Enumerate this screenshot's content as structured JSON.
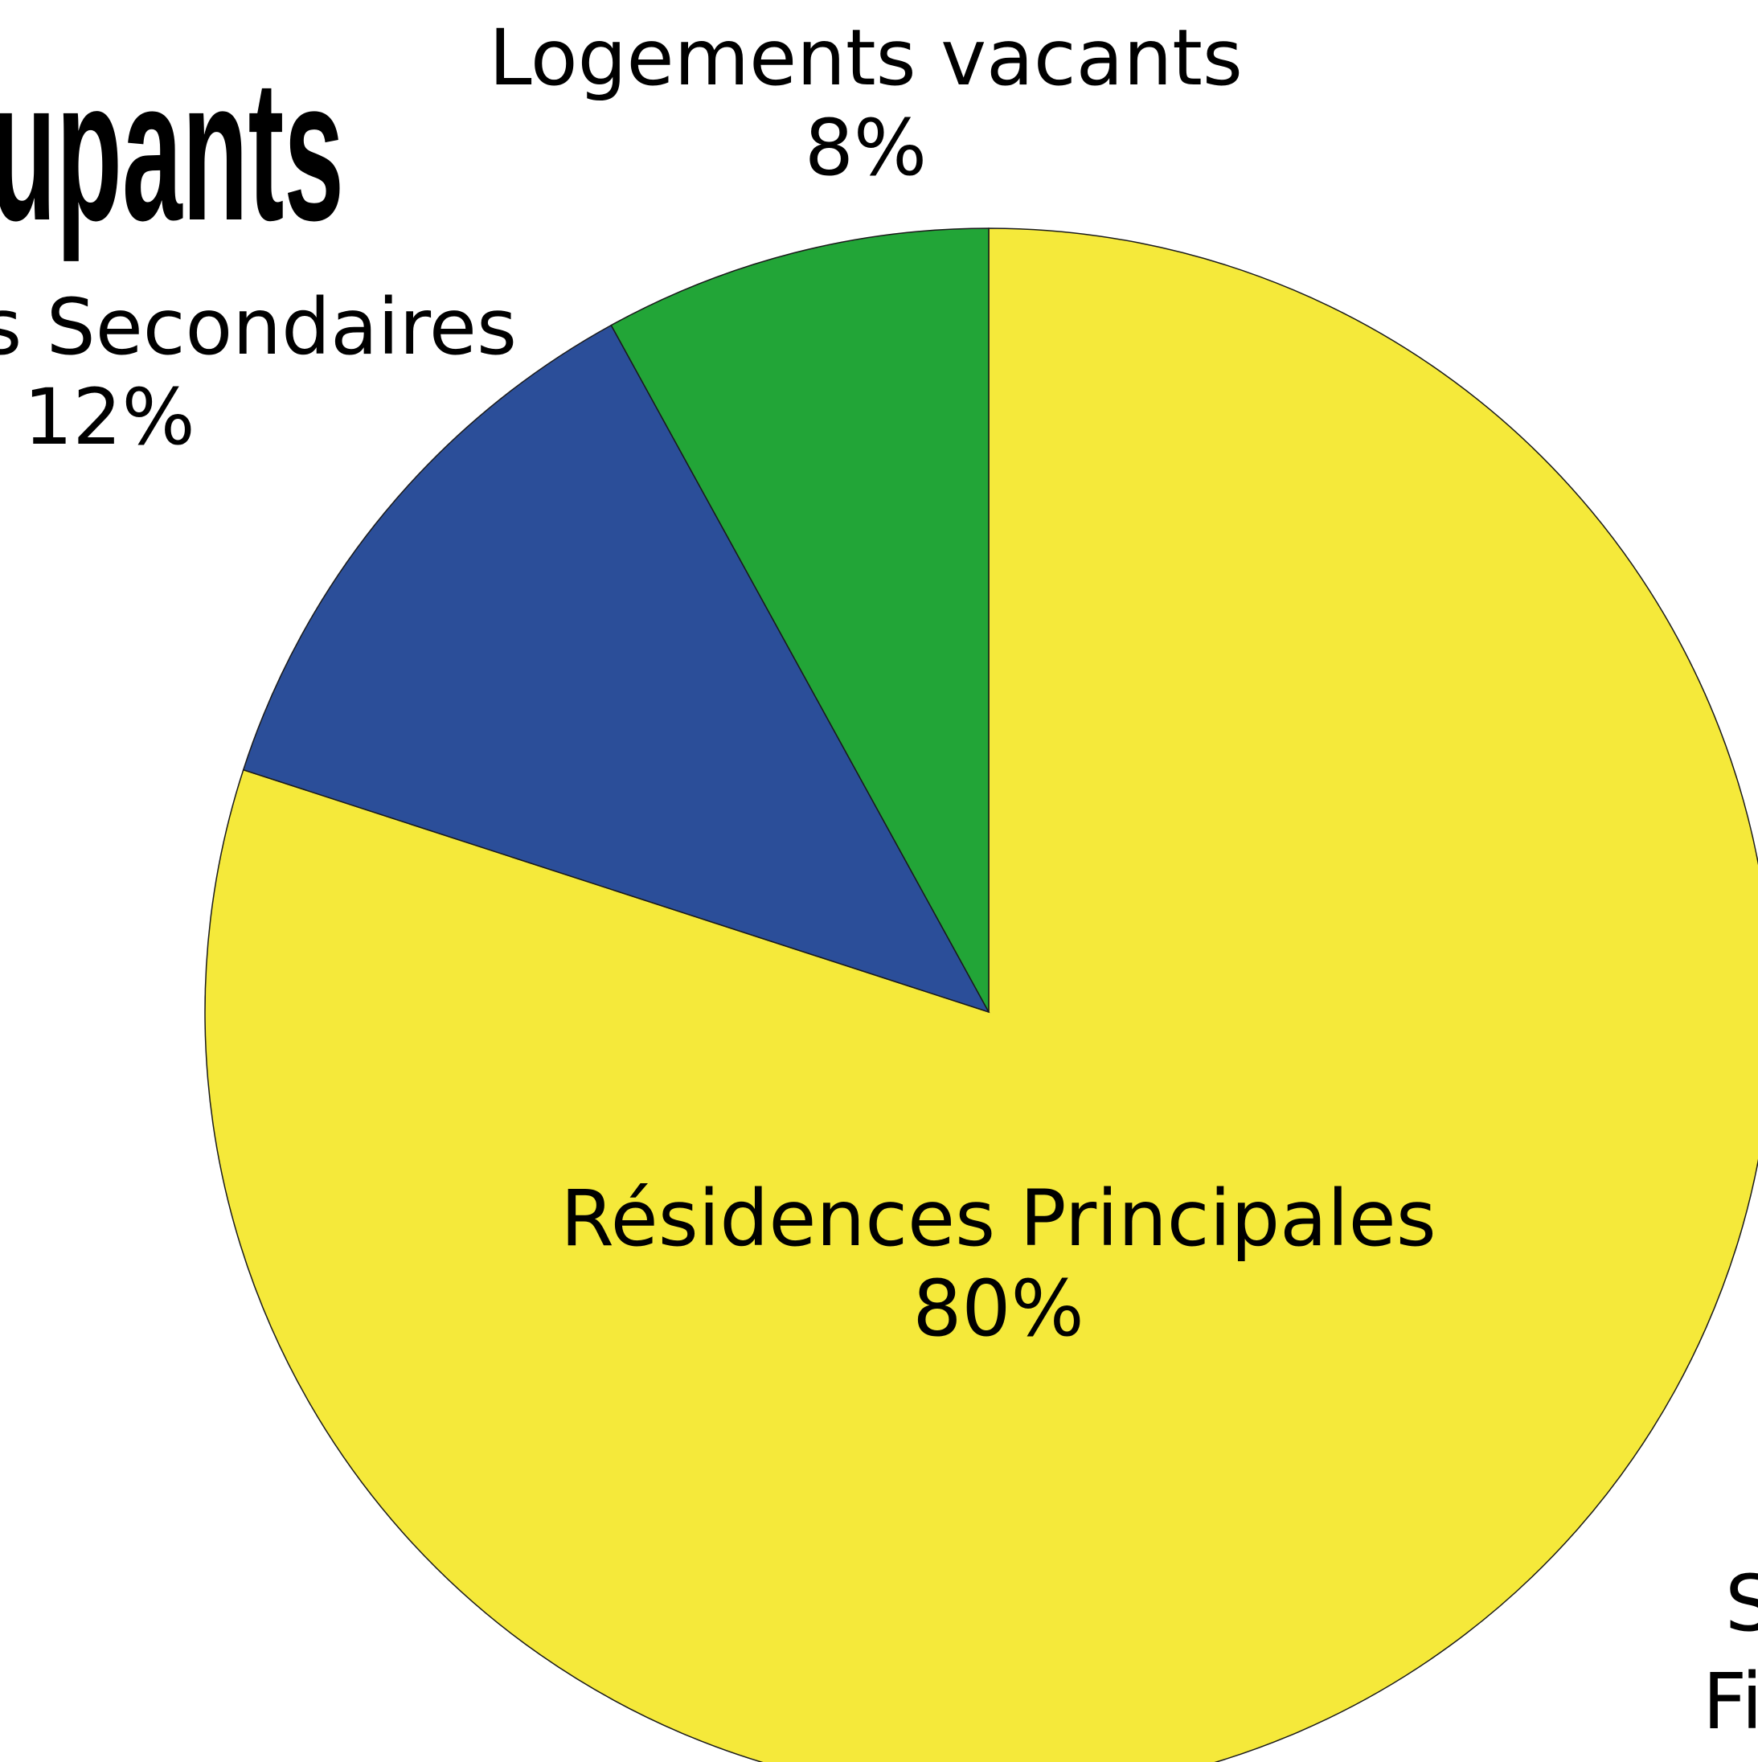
{
  "chart_data": {
    "type": "pie",
    "title": "upants",
    "categories": [
      "Résidences Principales",
      "es Secondaires",
      "Logements vacants"
    ],
    "values": [
      80,
      12,
      8
    ],
    "value_labels": [
      "80%",
      "12%",
      "8%"
    ],
    "colors": [
      "#f5e93a",
      "#2b4e99",
      "#22a537"
    ],
    "annotations": [
      "S",
      "Fi"
    ]
  }
}
